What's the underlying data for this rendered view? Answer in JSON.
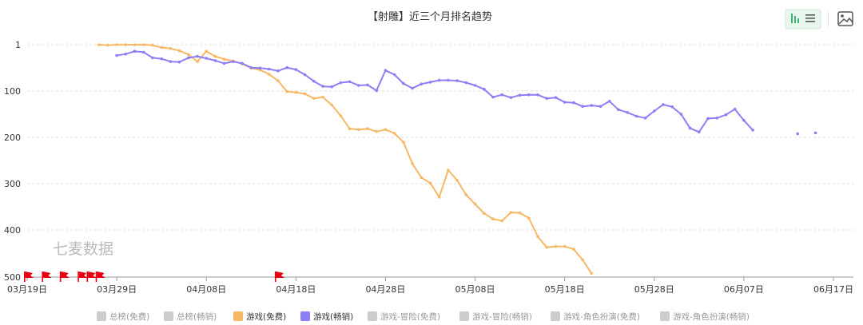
{
  "chart_data": {
    "type": "line",
    "title": "【射雕】近三个月排名趋势",
    "xlabel": "",
    "ylabel": "",
    "y_ticks": [
      1,
      100,
      200,
      300,
      400,
      500
    ],
    "ylim": [
      1,
      500
    ],
    "y_inverted": true,
    "y_scale": "stretched-rank",
    "x_tick_labels": [
      "03月19日",
      "03月29日",
      "04月08日",
      "04月18日",
      "04月28日",
      "05月08日",
      "05月18日",
      "05月28日",
      "06月07日",
      "06月17日"
    ],
    "x_tick_dates": [
      "2024-03-19",
      "2024-03-29",
      "2024-04-08",
      "2024-04-18",
      "2024-04-28",
      "2024-05-08",
      "2024-05-18",
      "2024-05-28",
      "2024-06-07",
      "2024-06-17"
    ],
    "grid": true,
    "legend_position": "bottom",
    "series": [
      {
        "name": "游戏(免费)",
        "color": "#f7b865",
        "values": [
          [
            "2024-03-27",
            1
          ],
          [
            "2024-03-28",
            2
          ],
          [
            "2024-03-29",
            1
          ],
          [
            "2024-03-30",
            1
          ],
          [
            "2024-03-31",
            1
          ],
          [
            "2024-04-01",
            1
          ],
          [
            "2024-04-02",
            2
          ],
          [
            "2024-04-03",
            7
          ],
          [
            "2024-04-04",
            9
          ],
          [
            "2024-04-05",
            14
          ],
          [
            "2024-04-06",
            22
          ],
          [
            "2024-04-07",
            37
          ],
          [
            "2024-04-08",
            15
          ],
          [
            "2024-04-09",
            26
          ],
          [
            "2024-04-10",
            32
          ],
          [
            "2024-04-11",
            36
          ],
          [
            "2024-04-12",
            42
          ],
          [
            "2024-04-13",
            51
          ],
          [
            "2024-04-14",
            55
          ],
          [
            "2024-04-15",
            64
          ],
          [
            "2024-04-16",
            78
          ],
          [
            "2024-04-17",
            101
          ],
          [
            "2024-04-18",
            103
          ],
          [
            "2024-04-19",
            106
          ],
          [
            "2024-04-20",
            116
          ],
          [
            "2024-04-21",
            113
          ],
          [
            "2024-04-22",
            130
          ],
          [
            "2024-04-23",
            153
          ],
          [
            "2024-04-24",
            181
          ],
          [
            "2024-04-25",
            183
          ],
          [
            "2024-04-26",
            181
          ],
          [
            "2024-04-27",
            187
          ],
          [
            "2024-04-28",
            183
          ],
          [
            "2024-04-29",
            191
          ],
          [
            "2024-04-30",
            210
          ],
          [
            "2024-05-01",
            256
          ],
          [
            "2024-05-02",
            286
          ],
          [
            "2024-05-03",
            298
          ],
          [
            "2024-05-04",
            328
          ],
          [
            "2024-05-05",
            270
          ],
          [
            "2024-05-06",
            292
          ],
          [
            "2024-05-07",
            323
          ],
          [
            "2024-05-08",
            343
          ],
          [
            "2024-05-09",
            363
          ],
          [
            "2024-05-10",
            375
          ],
          [
            "2024-05-11",
            379
          ],
          [
            "2024-05-12",
            361
          ],
          [
            "2024-05-13",
            362
          ],
          [
            "2024-05-14",
            373
          ],
          [
            "2024-05-15",
            413
          ],
          [
            "2024-05-16",
            436
          ],
          [
            "2024-05-17",
            434
          ],
          [
            "2024-05-18",
            434
          ],
          [
            "2024-05-19",
            440
          ],
          [
            "2024-05-20",
            463
          ],
          [
            "2024-05-21",
            492
          ]
        ]
      },
      {
        "name": "游戏(畅销)",
        "color": "#8c7ff6",
        "values": [
          [
            "2024-03-29",
            24
          ],
          [
            "2024-03-30",
            21
          ],
          [
            "2024-03-31",
            15
          ],
          [
            "2024-04-01",
            17
          ],
          [
            "2024-04-02",
            29
          ],
          [
            "2024-04-03",
            31
          ],
          [
            "2024-04-04",
            37
          ],
          [
            "2024-04-05",
            38
          ],
          [
            "2024-04-06",
            29
          ],
          [
            "2024-04-07",
            26
          ],
          [
            "2024-04-08",
            30
          ],
          [
            "2024-04-09",
            35
          ],
          [
            "2024-04-10",
            41
          ],
          [
            "2024-04-11",
            37
          ],
          [
            "2024-04-12",
            41
          ],
          [
            "2024-04-13",
            50
          ],
          [
            "2024-04-14",
            51
          ],
          [
            "2024-04-15",
            53
          ],
          [
            "2024-04-16",
            57
          ],
          [
            "2024-04-17",
            50
          ],
          [
            "2024-04-18",
            54
          ],
          [
            "2024-04-19",
            65
          ],
          [
            "2024-04-20",
            79
          ],
          [
            "2024-04-21",
            90
          ],
          [
            "2024-04-22",
            91
          ],
          [
            "2024-04-23",
            82
          ],
          [
            "2024-04-24",
            80
          ],
          [
            "2024-04-25",
            88
          ],
          [
            "2024-04-26",
            87
          ],
          [
            "2024-04-27",
            99
          ],
          [
            "2024-04-28",
            56
          ],
          [
            "2024-04-29",
            65
          ],
          [
            "2024-04-30",
            84
          ],
          [
            "2024-05-01",
            94
          ],
          [
            "2024-05-02",
            85
          ],
          [
            "2024-05-03",
            81
          ],
          [
            "2024-05-04",
            77
          ],
          [
            "2024-05-05",
            77
          ],
          [
            "2024-05-06",
            78
          ],
          [
            "2024-05-07",
            82
          ],
          [
            "2024-05-08",
            88
          ],
          [
            "2024-05-09",
            96
          ],
          [
            "2024-05-10",
            113
          ],
          [
            "2024-05-11",
            108
          ],
          [
            "2024-05-12",
            114
          ],
          [
            "2024-05-13",
            109
          ],
          [
            "2024-05-14",
            108
          ],
          [
            "2024-05-15",
            108
          ],
          [
            "2024-05-16",
            116
          ],
          [
            "2024-05-17",
            114
          ],
          [
            "2024-05-18",
            124
          ],
          [
            "2024-05-19",
            125
          ],
          [
            "2024-05-20",
            133
          ],
          [
            "2024-05-21",
            131
          ],
          [
            "2024-05-22",
            133
          ],
          [
            "2024-05-23",
            122
          ],
          [
            "2024-05-24",
            140
          ],
          [
            "2024-05-25",
            146
          ],
          [
            "2024-05-26",
            154
          ],
          [
            "2024-05-27",
            158
          ],
          [
            "2024-05-28",
            143
          ],
          [
            "2024-05-29",
            129
          ],
          [
            "2024-05-30",
            134
          ],
          [
            "2024-05-31",
            150
          ],
          [
            "2024-06-01",
            180
          ],
          [
            "2024-06-02",
            188
          ],
          [
            "2024-06-03",
            159
          ],
          [
            "2024-06-04",
            158
          ],
          [
            "2024-06-05",
            151
          ],
          [
            "2024-06-06",
            139
          ],
          [
            "2024-06-07",
            163
          ],
          [
            "2024-06-08",
            184
          ],
          [
            "2024-06-13",
            192
          ],
          [
            "2024-06-15",
            190
          ]
        ]
      }
    ],
    "event_flags": [
      "2024-03-19",
      "2024-03-21",
      "2024-03-23",
      "2024-03-25",
      "2024-03-26",
      "2024-03-27",
      "2024-04-16"
    ],
    "event_flag_color": "#e60012",
    "legend": [
      {
        "label": "总榜(免费)",
        "active": false,
        "color": "#cccccc"
      },
      {
        "label": "总榜(畅销)",
        "active": false,
        "color": "#cccccc"
      },
      {
        "label": "游戏(免费)",
        "active": true,
        "color": "#f7b865"
      },
      {
        "label": "游戏(畅销)",
        "active": true,
        "color": "#8c7ff6"
      },
      {
        "label": "游戏-冒险(免费)",
        "active": false,
        "color": "#cccccc"
      },
      {
        "label": "游戏-冒险(畅销)",
        "active": false,
        "color": "#cccccc"
      },
      {
        "label": "游戏-角色扮演(免费)",
        "active": false,
        "color": "#cccccc"
      },
      {
        "label": "游戏-角色扮演(畅销)",
        "active": false,
        "color": "#cccccc"
      }
    ],
    "watermark": "七麦数据"
  },
  "toolbar": {
    "icons": [
      "bar-line-toggle-icon",
      "save-image-icon"
    ],
    "active_color": "#3cb371"
  }
}
